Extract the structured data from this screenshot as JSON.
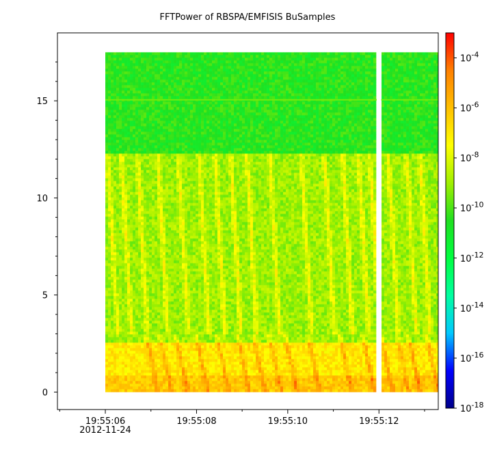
{
  "chart_data": {
    "type": "heatmap",
    "title": "FFTPower of RBSPA/EMFISIS  BuSamples",
    "xlabel": "",
    "ylabel": "",
    "x_ticks": [
      {
        "t": 6,
        "label": "19:55:06",
        "sublabel": "2012-11-24"
      },
      {
        "t": 8,
        "label": "19:55:08"
      },
      {
        "t": 10,
        "label": "19:55:10"
      },
      {
        "t": 12,
        "label": "19:55:12"
      }
    ],
    "x_minor_ticks": [
      5,
      7,
      9,
      11,
      13
    ],
    "xlim": [
      4.95,
      13.3
    ],
    "x_data_range": [
      6.0,
      13.3
    ],
    "gap": {
      "t_start": 11.95,
      "t_end": 12.05
    },
    "y_ticks": [
      0,
      5,
      10,
      15
    ],
    "ylim": [
      -0.9,
      18.5
    ],
    "y_data_range": [
      0,
      17.5
    ],
    "colorbar": {
      "scale": "log",
      "range": [
        1e-18,
        0.001
      ],
      "ticks": [
        {
          "exp": -4,
          "base": "10",
          "sup": "-4"
        },
        {
          "exp": -6,
          "base": "10",
          "sup": "-6"
        },
        {
          "exp": -8,
          "base": "10",
          "sup": "-8"
        },
        {
          "exp": -10,
          "base": "10",
          "sup": "-10"
        },
        {
          "exp": -12,
          "base": "10",
          "sup": "-12"
        },
        {
          "exp": -14,
          "base": "10",
          "sup": "-14"
        },
        {
          "exp": -16,
          "base": "10",
          "sup": "-16"
        },
        {
          "exp": -18,
          "base": "10",
          "sup": "-18"
        }
      ],
      "colors": [
        "#00008b",
        "#0000ff",
        "#00c8ff",
        "#00ffa0",
        "#00ff40",
        "#20e020",
        "#a0f000",
        "#ffff00",
        "#ffc000",
        "#ff8000",
        "#ff0000"
      ]
    },
    "regions": [
      {
        "y_range": [
          12.3,
          17.5
        ],
        "level_exp": -10.5
      },
      {
        "y_range": [
          2.5,
          12.3
        ],
        "level_exp": -9
      },
      {
        "y_range": [
          0,
          2.5
        ],
        "level_exp": -7
      }
    ],
    "emission_line": {
      "y": 15.05,
      "level_exp": -9.5
    },
    "whistler_bursts_t": [
      6.05,
      6.35,
      6.7,
      7.15,
      7.6,
      8.05,
      8.4,
      8.75,
      9.1,
      9.6,
      10.3,
      10.8,
      11.2,
      11.55,
      11.8,
      12.2,
      12.6,
      12.9
    ],
    "grid": false
  }
}
